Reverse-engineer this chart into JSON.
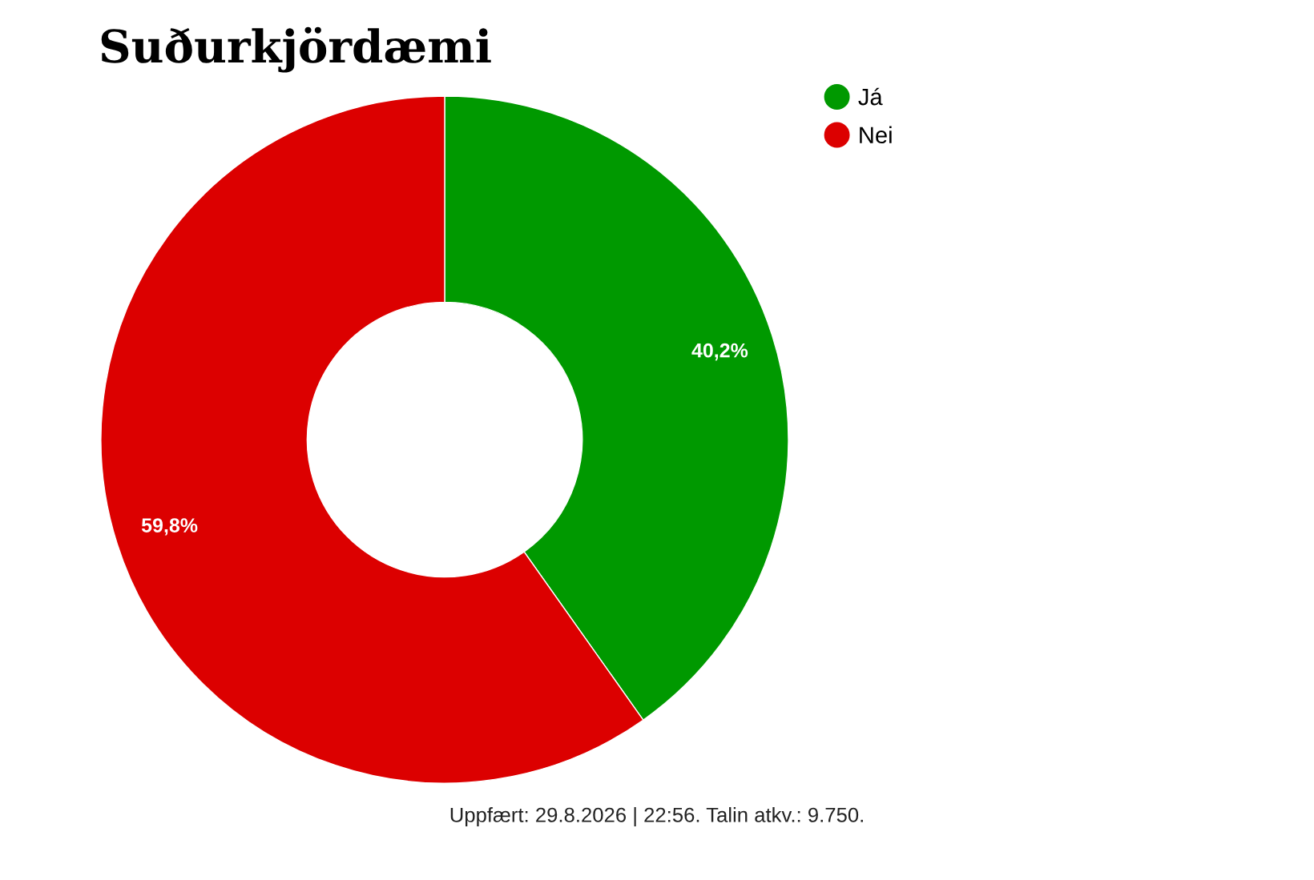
{
  "chart_data": {
    "type": "donut",
    "title": "Suðurkjördæmi",
    "categories": [
      "Já",
      "Nei"
    ],
    "values": [
      40.2,
      59.8
    ],
    "colors": [
      "#009900",
      "#dc0000"
    ],
    "value_labels": [
      "40,2%",
      "59,8%"
    ],
    "legend": "top right",
    "annotations": [
      "Uppfært: 29.8.2026 | 22:56. Talin atkv.: 9.750."
    ]
  }
}
